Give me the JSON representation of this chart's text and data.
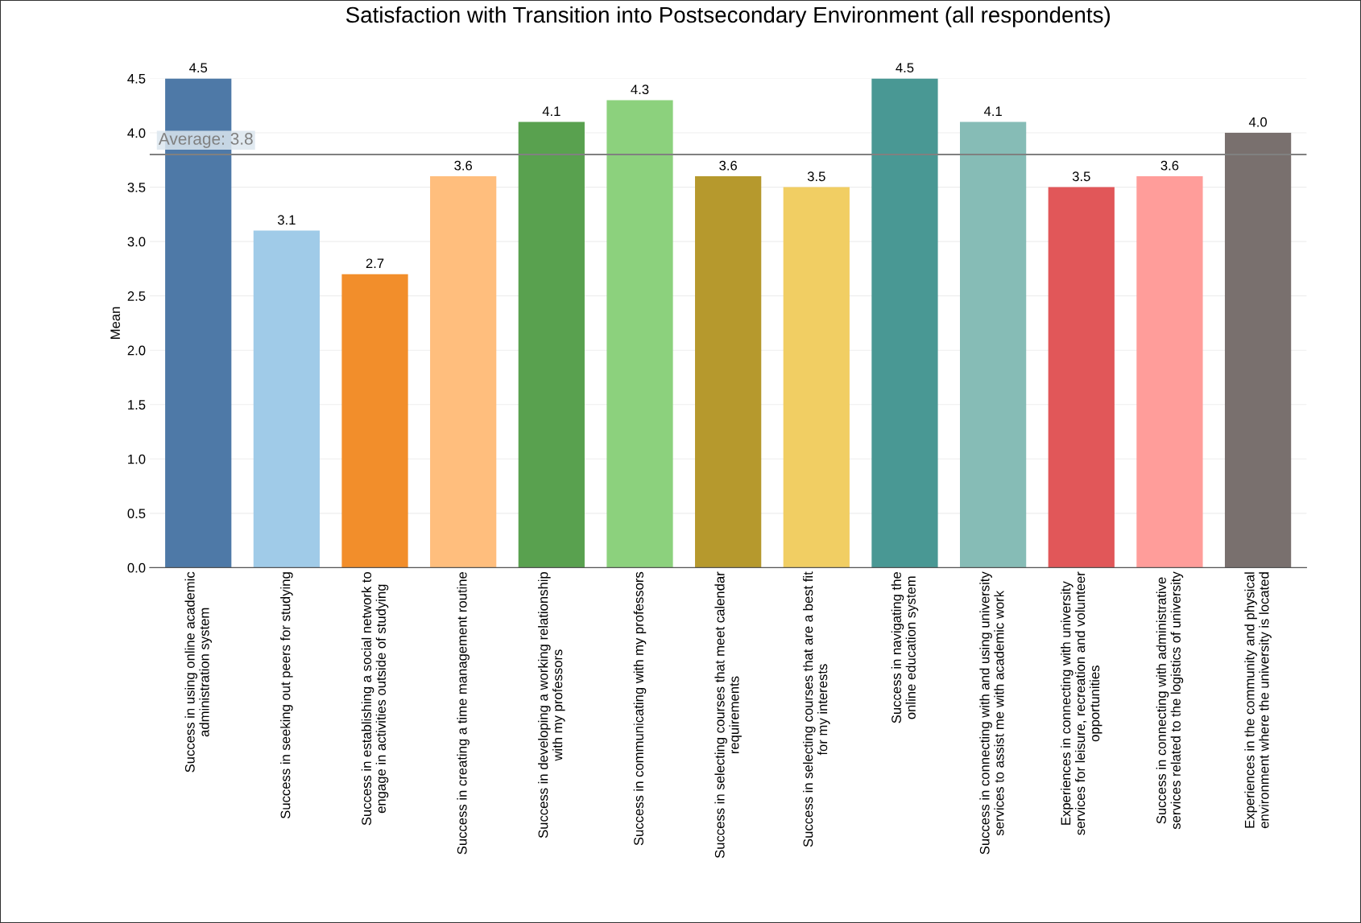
{
  "chart_data": {
    "type": "bar",
    "title": "Satisfaction with Transition into Postsecondary Environment (all respondents)",
    "ylabel": "Mean",
    "categories": [
      "Success in using online academic\nadministration system",
      "Success in seeking out peers for studying",
      "Success in establishing a social network to\nengage in activities outside of studying",
      "Success in creating a time management routine",
      "Success in developing a working relationship\nwith my professors",
      "Success in communicating with my professors",
      "Success in selecting courses that meet calendar\nrequirements",
      "Success in selecting courses that are a best fit\nfor my interests",
      "Success in navigating the\nonline education system",
      "Success in connecting with and using university\nservices to assist me with academic work",
      "Experiences in connecting with university\nservices for leisure, recreation and volunteer\nopportunities",
      "Success in connecting with administrative\nservices related to the logistics of university",
      "Experiences in the community and physical\nenvironment where the university is located"
    ],
    "values": [
      4.5,
      3.1,
      2.7,
      3.6,
      4.1,
      4.3,
      3.6,
      3.5,
      4.5,
      4.1,
      3.5,
      3.6,
      4.0
    ],
    "colors": [
      "#4e79a7",
      "#a0cbe8",
      "#f28e2b",
      "#ffbe7d",
      "#59a14f",
      "#8cd17d",
      "#b6992d",
      "#f1ce63",
      "#499894",
      "#86bcb6",
      "#e15759",
      "#ff9d9a",
      "#79706e"
    ],
    "value_labels": [
      "4.5",
      "3.1",
      "2.7",
      "3.6",
      "4.1",
      "4.3",
      "3.6",
      "3.5",
      "4.5",
      "4.1",
      "3.5",
      "3.6",
      "4.0"
    ],
    "ylim": [
      0,
      4.5
    ],
    "yticks": [
      {
        "value": 0,
        "label": "0.0"
      },
      0.5,
      {
        "value": 1,
        "label": "1.0"
      },
      1.5,
      {
        "value": 2,
        "label": "2.0"
      },
      2.5,
      {
        "value": 3,
        "label": "3.0"
      },
      3.5,
      {
        "value": 4,
        "label": "4.0"
      },
      4.5
    ],
    "grid": "y",
    "ref_lines": [
      {
        "axis": "y",
        "value": 3.8,
        "label": "Average: 3.8",
        "color": "#808080"
      }
    ]
  }
}
